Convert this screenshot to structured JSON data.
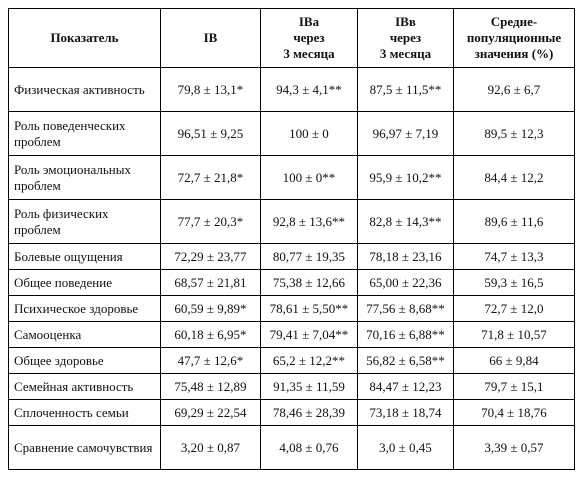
{
  "table": {
    "header": [
      [
        "Показатель"
      ],
      [
        "IВ"
      ],
      [
        "IВа",
        "через",
        "3 месяца"
      ],
      [
        "IВв",
        "через",
        "3 месяца"
      ],
      [
        "Средне-",
        "популяционные",
        "значения (%)"
      ]
    ],
    "rows": [
      [
        "Физическая активность",
        "79,8 ± 13,1*",
        "94,3 ± 4,1**",
        "87,5 ± 11,5**",
        "92,6 ± 6,7"
      ],
      [
        "Роль поведенческих проблем",
        "96,51 ± 9,25",
        "100 ± 0",
        "96,97 ± 7,19",
        "89,5 ± 12,3"
      ],
      [
        "Роль эмоциональных проблем",
        "72,7 ± 21,8*",
        "100 ± 0**",
        "95,9 ± 10,2**",
        "84,4 ± 12,2"
      ],
      [
        "Роль физических проблем",
        "77,7 ± 20,3*",
        "92,8 ± 13,6**",
        "82,8 ± 14,3**",
        "89,6 ± 11,6"
      ],
      [
        "Болевые ощущения",
        "72,29 ± 23,77",
        "80,77 ± 19,35",
        "78,18 ± 23,16",
        "74,7 ± 13,3"
      ],
      [
        "Общее поведение",
        "68,57 ± 21,81",
        "75,38 ± 12,66",
        "65,00 ± 22,36",
        "59,3 ± 16,5"
      ],
      [
        "Психическое здоровье",
        "60,59 ± 9,89*",
        "78,61 ± 5,50**",
        "77,56 ± 8,68**",
        "72,7 ± 12,0"
      ],
      [
        "Самооценка",
        "60,18 ± 6,95*",
        "79,41 ± 7,04**",
        "70,16 ± 6,88**",
        "71,8 ± 10,57"
      ],
      [
        "Общее здоровье",
        "47,7 ± 12,6*",
        "65,2 ± 12,2**",
        "56,82 ± 6,58**",
        "66 ± 9,84"
      ],
      [
        "Семейная активность",
        "75,48 ± 12,89",
        "91,35 ± 11,59",
        "84,47 ± 12,23",
        "79,7 ± 15,1"
      ],
      [
        "Сплоченность семьи",
        "69,29 ± 22,54",
        "78,46 ± 28,39",
        "73,18 ± 18,74",
        "70,4 ± 18,76"
      ],
      [
        "Сравнение самочувствия",
        "3,20 ± 0,87",
        "4,08 ± 0,76",
        "3,0 ± 0,45",
        "3,39 ± 0,57"
      ]
    ]
  }
}
